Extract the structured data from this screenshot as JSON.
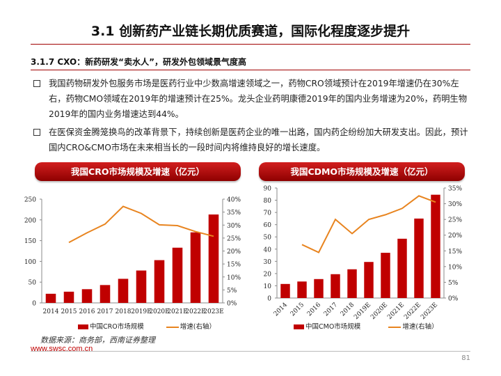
{
  "page": {
    "title": "3.1 创新药产业链长期优质赛道，国际化程度逐步提升",
    "section": "3.1.7 CXO：新药研发“卖水人”，研发外包领域景气度高",
    "bullets": [
      "我国药物研发外包服务市场是医药行业中少数高增速领域之一，药物CRO领域预计在2019年增速仍在30%左右，药物CMO领域在2019年的增速预计在25%。龙头企业药明康德2019年的国内业务增速为20%，药明生物2019年的国内业务增速达到44%。",
      "在医保资金腾笼换鸟的改革背景下，持续创新是医药企业的唯一出路，国内药企纷纷加大研发支出。因此，预计国内CRO&CMO市场在未来相当长的一段时间内将维持良好的增长速度。"
    ],
    "source": "数据来源：商务部，西南证券整理",
    "website": "www.swsc.com.cn",
    "page_number": "81"
  },
  "colors": {
    "accent": "#c00000",
    "bar": "#c00000",
    "line": "#e8841f"
  },
  "chart_data": [
    {
      "type": "bar",
      "title": "我国CRO市场规模及增速（亿元）",
      "categories": [
        "2014",
        "2015",
        "2016",
        "2017",
        "2018",
        "2019E",
        "2020E",
        "2021E",
        "2022E",
        "2023E"
      ],
      "series": [
        {
          "name": "中国CRO市场规模",
          "type": "bar",
          "axis": "left",
          "values": [
            22,
            27,
            33,
            43,
            58,
            78,
            103,
            133,
            170,
            213
          ]
        },
        {
          "name": "增速(右轴）",
          "type": "line",
          "axis": "right",
          "values": [
            null,
            23.3,
            27.0,
            30.4,
            37.2,
            34.5,
            30.1,
            29.8,
            27.5,
            25.7
          ]
        }
      ],
      "y_left": {
        "min": 0,
        "max": 250,
        "ticks": [
          "0",
          "50",
          "100",
          "150",
          "200",
          "250"
        ]
      },
      "y_right": {
        "min": 0,
        "max": 40,
        "ticks": [
          "0%",
          "5%",
          "10%",
          "15%",
          "20%",
          "25%",
          "30%",
          "35%",
          "40%"
        ]
      },
      "legend": "bottom"
    },
    {
      "type": "bar",
      "title": "我国CDMO市场规模及增速（亿元）",
      "categories": [
        "2014",
        "2015",
        "2016",
        "2017",
        "2018",
        "2019E",
        "2020E",
        "2021E",
        "2022E",
        "2023E"
      ],
      "series": [
        {
          "name": "中国CMO市场规模",
          "type": "bar",
          "axis": "left",
          "values": [
            11.5,
            13.5,
            15.5,
            19.5,
            23.5,
            29.5,
            37,
            48.5,
            65,
            84.5
          ]
        },
        {
          "name": "增速(右轴）",
          "type": "line",
          "axis": "right",
          "values": [
            null,
            17.0,
            14.5,
            25.0,
            20.5,
            25.0,
            26.5,
            28.5,
            32.5,
            30.5
          ]
        }
      ],
      "y_left": {
        "min": 0,
        "max": 90,
        "ticks": [
          "0",
          "10",
          "20",
          "30",
          "40",
          "50",
          "60",
          "70",
          "80",
          "90"
        ]
      },
      "y_right": {
        "min": 0,
        "max": 35,
        "ticks": [
          "0%",
          "5%",
          "10%",
          "15%",
          "20%",
          "25%",
          "30%",
          "35%"
        ]
      },
      "x_labels_rotated": true,
      "legend": "bottom"
    }
  ]
}
